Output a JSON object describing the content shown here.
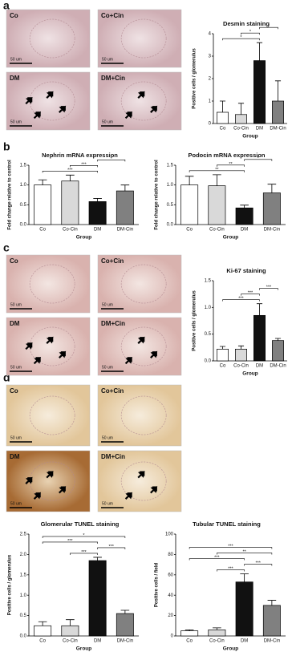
{
  "panels": [
    {
      "label": "a",
      "images": [
        {
          "label": "Co",
          "scale": "50 um"
        },
        {
          "label": "Co+Cin",
          "scale": "50 um"
        },
        {
          "label": "DM",
          "scale": "50 um"
        },
        {
          "label": "DM+Cin",
          "scale": "50 um"
        }
      ]
    },
    {
      "label": "b"
    },
    {
      "label": "c",
      "images": [
        {
          "label": "Co",
          "scale": "50 um"
        },
        {
          "label": "Co+Cin",
          "scale": "50 um"
        },
        {
          "label": "DM",
          "scale": "50 um"
        },
        {
          "label": "DM+Cin",
          "scale": "50 um"
        }
      ]
    },
    {
      "label": "d",
      "images": [
        {
          "label": "Co",
          "scale": "50 um"
        },
        {
          "label": "Co+Cin",
          "scale": "50 um"
        },
        {
          "label": "DM",
          "scale": "50 um"
        },
        {
          "label": "DM+Cin",
          "scale": "50 um"
        }
      ]
    }
  ],
  "chart_data": [
    {
      "type": "bar",
      "title": "Desmin staining",
      "x_label": "Group",
      "y_label": "Positive cells / glomerulus",
      "categories": [
        "Co",
        "Co-Cin",
        "DM",
        "DM-Cin"
      ],
      "values": [
        0.5,
        0.4,
        2.8,
        1.0
      ],
      "errors": [
        0.5,
        0.5,
        0.8,
        0.9
      ],
      "colors": [
        "#ffffff",
        "#d9d9d9",
        "#111111",
        "#808080"
      ],
      "ylim": [
        0,
        4
      ],
      "yticks": [
        0,
        1,
        2,
        3,
        4
      ],
      "brackets": [
        {
          "between": [
            "Co",
            "DM"
          ],
          "label": "*"
        },
        {
          "between": [
            "Co-Cin",
            "DM"
          ],
          "label": "*"
        },
        {
          "between": [
            "DM",
            "DM-Cin"
          ],
          "label": "*"
        }
      ]
    },
    {
      "type": "bar",
      "title": "Nephrin mRNA expression",
      "x_label": "Group",
      "y_label": "Fold change relative to control",
      "categories": [
        "Co",
        "Co-Cin",
        "DM",
        "DM-Cin"
      ],
      "values": [
        1.0,
        1.1,
        0.58,
        0.85
      ],
      "errors": [
        0.13,
        0.15,
        0.08,
        0.15
      ],
      "colors": [
        "#ffffff",
        "#d9d9d9",
        "#111111",
        "#808080"
      ],
      "ylim": [
        0,
        1.5
      ],
      "yticks": [
        {
          "value": 0,
          "label": "0.0"
        },
        {
          "value": 0.5,
          "label": "0.5"
        },
        {
          "value": 1,
          "label": "1.0"
        },
        {
          "value": 1.5,
          "label": "1.5"
        }
      ],
      "brackets": [
        {
          "between": [
            "Co",
            "DM"
          ],
          "label": "***"
        },
        {
          "between": [
            "Co-Cin",
            "DM"
          ],
          "label": "***"
        },
        {
          "between": [
            "DM",
            "DM-Cin"
          ],
          "label": "*"
        }
      ]
    },
    {
      "type": "bar",
      "title": "Podocin mRNA expression",
      "x_label": "Group",
      "y_label": "Fold change relative to control",
      "categories": [
        "Co",
        "Co-Cin",
        "DM",
        "DM-Cin"
      ],
      "values": [
        1.0,
        0.98,
        0.42,
        0.8
      ],
      "errors": [
        0.22,
        0.28,
        0.07,
        0.22
      ],
      "colors": [
        "#ffffff",
        "#d9d9d9",
        "#111111",
        "#808080"
      ],
      "ylim": [
        0,
        1.5
      ],
      "yticks": [
        {
          "value": 0,
          "label": "0.0"
        },
        {
          "value": 0.5,
          "label": "0.5"
        },
        {
          "value": 1,
          "label": "1.0"
        },
        {
          "value": 1.5,
          "label": "1.5"
        }
      ],
      "brackets": [
        {
          "between": [
            "Co",
            "DM"
          ],
          "label": "**"
        },
        {
          "between": [
            "Co-Cin",
            "DM"
          ],
          "label": "**"
        },
        {
          "between": [
            "DM",
            "DM-Cin"
          ],
          "label": "*"
        }
      ]
    },
    {
      "type": "bar",
      "title": "Ki-67 staining",
      "x_label": "Group",
      "y_label": "Positive cells / glomerulus",
      "categories": [
        "Co",
        "Co-Cin",
        "DM",
        "DM-Cin"
      ],
      "values": [
        0.22,
        0.22,
        0.85,
        0.38
      ],
      "errors": [
        0.05,
        0.06,
        0.22,
        0.04
      ],
      "colors": [
        "#ffffff",
        "#d9d9d9",
        "#111111",
        "#808080"
      ],
      "ylim": [
        0,
        1.5
      ],
      "yticks": [
        {
          "value": 0,
          "label": "0.0"
        },
        {
          "value": 0.5,
          "label": "0.5"
        },
        {
          "value": 1,
          "label": "1.0"
        },
        {
          "value": 1.5,
          "label": "1.5"
        }
      ],
      "brackets": [
        {
          "between": [
            "Co",
            "DM"
          ],
          "label": "***"
        },
        {
          "between": [
            "Co-Cin",
            "DM"
          ],
          "label": "***"
        },
        {
          "between": [
            "DM",
            "DM-Cin"
          ],
          "label": "***"
        }
      ]
    },
    {
      "type": "bar",
      "title": "Glomerular TUNEL staining",
      "x_label": "Group",
      "y_label": "Positive cells / glomerulus",
      "categories": [
        "Co",
        "Co-Cin",
        "DM",
        "DM-Cin"
      ],
      "values": [
        0.25,
        0.25,
        1.85,
        0.55
      ],
      "errors": [
        0.1,
        0.15,
        0.08,
        0.08
      ],
      "colors": [
        "#ffffff",
        "#d9d9d9",
        "#111111",
        "#808080"
      ],
      "ylim": [
        0,
        2.5
      ],
      "yticks": [
        {
          "value": 0,
          "label": "0.0"
        },
        {
          "value": 0.5,
          "label": "0.5"
        },
        {
          "value": 1,
          "label": "1.0"
        },
        {
          "value": 1.5,
          "label": "1.5"
        },
        {
          "value": 2,
          "label": "2.0"
        },
        {
          "value": 2.5,
          "label": "2.5"
        }
      ],
      "brackets": [
        {
          "between": [
            "Co-Cin",
            "DM"
          ],
          "label": "***"
        },
        {
          "between": [
            "DM",
            "DM-Cin"
          ],
          "label": "***"
        },
        {
          "between": [
            "Co",
            "DM"
          ],
          "label": "***"
        },
        {
          "between": [
            "Co",
            "DM-Cin"
          ],
          "label": "*"
        }
      ]
    },
    {
      "type": "bar",
      "title": "Tubular TUNEL staining",
      "x_label": "Group",
      "y_label": "Positive cells / field",
      "categories": [
        "Co",
        "Co-Cin",
        "DM",
        "DM-Cin"
      ],
      "values": [
        5,
        6,
        53,
        30
      ],
      "errors": [
        1,
        2,
        8,
        5
      ],
      "colors": [
        "#ffffff",
        "#d9d9d9",
        "#111111",
        "#808080"
      ],
      "ylim": [
        0,
        100
      ],
      "yticks": [
        0,
        20,
        40,
        60,
        80,
        100
      ],
      "brackets": [
        {
          "between": [
            "Co-Cin",
            "DM"
          ],
          "label": "***"
        },
        {
          "between": [
            "DM",
            "DM-Cin"
          ],
          "label": "***"
        },
        {
          "between": [
            "Co",
            "DM"
          ],
          "label": "***"
        },
        {
          "between": [
            "Co-Cin",
            "DM-Cin"
          ],
          "label": "**"
        },
        {
          "between": [
            "Co",
            "DM-Cin"
          ],
          "label": "***"
        }
      ]
    }
  ]
}
